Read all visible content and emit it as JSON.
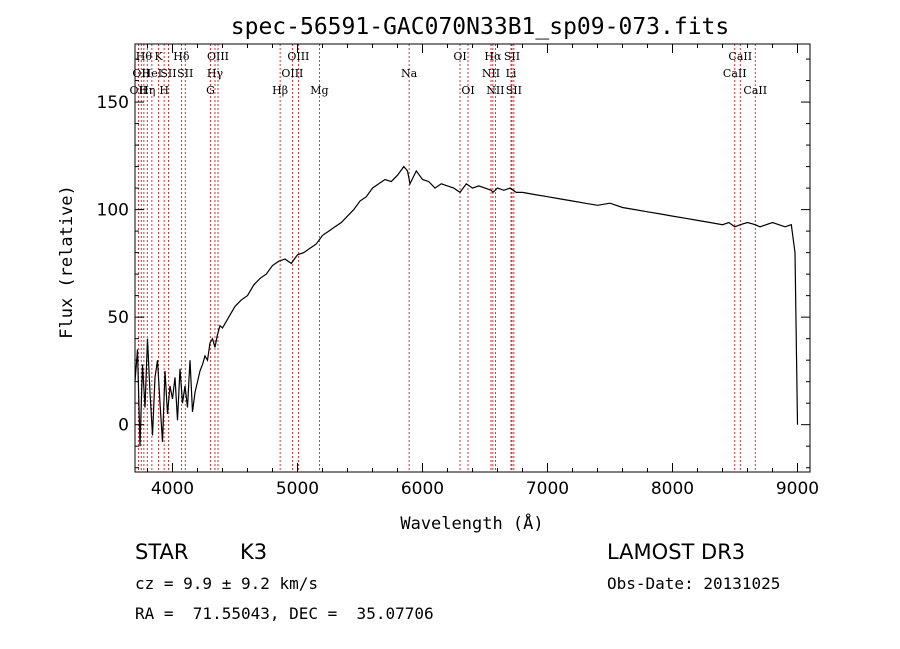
{
  "chart_data": {
    "type": "line",
    "title": "spec-56591-GAC070N33B1_sp09-073.fits",
    "xlabel": "Wavelength (Å)",
    "ylabel": "Flux (relative)",
    "xlim": [
      3700,
      9100
    ],
    "ylim": [
      -22,
      177
    ],
    "xticks": [
      "4000",
      "5000",
      "6000",
      "7000",
      "8000",
      "9000"
    ],
    "yticks": [
      "0",
      "50",
      "100",
      "150"
    ],
    "series": [
      {
        "x": [
          3700,
          3720,
          3740,
          3760,
          3780,
          3800,
          3820,
          3840,
          3860,
          3880,
          3900,
          3920,
          3940,
          3960,
          3980,
          4000,
          4020,
          4040,
          4060,
          4080,
          4100,
          4120,
          4140,
          4160,
          4180,
          4200,
          4220,
          4240,
          4260,
          4280,
          4300,
          4320,
          4340,
          4360,
          4380,
          4400,
          4450,
          4500,
          4550,
          4600,
          4650,
          4700,
          4750,
          4800,
          4850,
          4900,
          4950,
          5000,
          5050,
          5100,
          5150,
          5200,
          5250,
          5300,
          5350,
          5400,
          5450,
          5500,
          5550,
          5600,
          5650,
          5700,
          5750,
          5800,
          5850,
          5880,
          5900,
          5950,
          6000,
          6050,
          6100,
          6150,
          6200,
          6250,
          6300,
          6350,
          6400,
          6450,
          6500,
          6550,
          6563,
          6600,
          6650,
          6700,
          6750,
          6800,
          6900,
          7000,
          7100,
          7200,
          7300,
          7400,
          7500,
          7600,
          7700,
          7800,
          7900,
          8000,
          8100,
          8200,
          8300,
          8400,
          8450,
          8498,
          8542,
          8600,
          8662,
          8700,
          8800,
          8900,
          8950,
          8980,
          9000
        ],
        "y": [
          20,
          35,
          -10,
          28,
          8,
          40,
          15,
          -5,
          22,
          30,
          10,
          -8,
          25,
          5,
          18,
          12,
          22,
          2,
          26,
          10,
          18,
          8,
          30,
          6,
          15,
          20,
          25,
          28,
          32,
          30,
          38,
          40,
          36,
          42,
          46,
          45,
          50,
          55,
          58,
          60,
          65,
          68,
          70,
          74,
          76,
          77,
          75,
          79,
          80,
          82,
          84,
          88,
          90,
          92,
          94,
          97,
          100,
          104,
          106,
          110,
          112,
          114,
          113,
          116,
          120,
          118,
          112,
          118,
          114,
          113,
          110,
          112,
          111,
          110,
          108,
          112,
          110,
          111,
          110,
          109,
          108,
          110,
          109,
          110,
          108,
          108,
          107,
          106,
          105,
          104,
          103,
          102,
          103,
          101,
          100,
          99,
          98,
          97,
          96,
          95,
          94,
          93,
          94,
          92,
          93,
          94,
          93,
          92,
          94,
          92,
          93,
          80,
          0
        ]
      }
    ],
    "line_markers": [
      {
        "wavelength": 3727,
        "label": "OII",
        "row": 2
      },
      {
        "wavelength": 3750,
        "label": "OII",
        "row": 1
      },
      {
        "wavelength": 3771,
        "label": "Hθ",
        "row": 0
      },
      {
        "wavelength": 3798,
        "label": "Hη",
        "row": 2
      },
      {
        "wavelength": 3835,
        "label": "HeI",
        "row": 1
      },
      {
        "wavelength": 3889,
        "label": "K",
        "row": 0
      },
      {
        "wavelength": 3933,
        "label": "H",
        "row": 2
      },
      {
        "wavelength": 3968,
        "label": "SII",
        "row": 1
      },
      {
        "wavelength": 4071,
        "label": "Hδ",
        "row": 0
      },
      {
        "wavelength": 4102,
        "label": "SII",
        "row": 1
      },
      {
        "wavelength": 4304,
        "label": "G",
        "row": 2
      },
      {
        "wavelength": 4340,
        "label": "Hγ",
        "row": 1
      },
      {
        "wavelength": 4364,
        "label": "OIII",
        "row": 0
      },
      {
        "wavelength": 4861,
        "label": "Hβ",
        "row": 2
      },
      {
        "wavelength": 4959,
        "label": "OIII",
        "row": 1
      },
      {
        "wavelength": 5007,
        "label": "OIII",
        "row": 0
      },
      {
        "wavelength": 5175,
        "label": "Mg",
        "row": 2
      },
      {
        "wavelength": 5893,
        "label": "Na",
        "row": 1
      },
      {
        "wavelength": 6300,
        "label": "OI",
        "row": 0
      },
      {
        "wavelength": 6364,
        "label": "OI",
        "row": 2
      },
      {
        "wavelength": 6548,
        "label": "NII",
        "row": 1
      },
      {
        "wavelength": 6563,
        "label": "Hα",
        "row": 0
      },
      {
        "wavelength": 6583,
        "label": "NII",
        "row": 2
      },
      {
        "wavelength": 6708,
        "label": "Li",
        "row": 1
      },
      {
        "wavelength": 6716,
        "label": "SII",
        "row": 0
      },
      {
        "wavelength": 6731,
        "label": "SII",
        "row": 2
      },
      {
        "wavelength": 8498,
        "label": "CaII",
        "row": 1
      },
      {
        "wavelength": 8542,
        "label": "CaII",
        "row": 0
      },
      {
        "wavelength": 8662,
        "label": "CaII",
        "row": 2
      }
    ],
    "marker_color": "#cc0000"
  },
  "info": {
    "class_label": "STAR",
    "subclass": "K3",
    "survey": "LAMOST DR3",
    "cz": "cz = 9.9 ± 9.2 km/s",
    "obs_date": "Obs-Date: 20131025",
    "coords": "RA =  71.55043, DEC =  35.07706"
  }
}
